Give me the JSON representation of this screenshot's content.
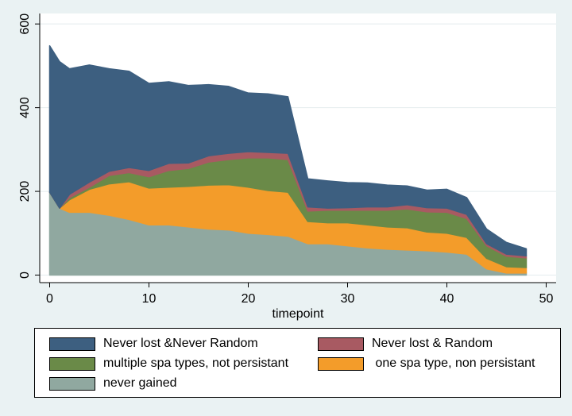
{
  "chart_data": {
    "type": "area",
    "stacked": true,
    "xlabel": "timepoint",
    "ylabel": "",
    "xlim": [
      -1,
      51
    ],
    "ylim": [
      -18,
      625
    ],
    "xticks": [
      0,
      10,
      20,
      30,
      40,
      50
    ],
    "yticks": [
      0,
      200,
      400,
      600
    ],
    "grid": true,
    "legend_position": "bottom",
    "x": [
      0,
      1,
      2,
      4,
      6,
      8,
      10,
      12,
      14,
      16,
      18,
      20,
      22,
      24,
      26,
      28,
      30,
      32,
      34,
      36,
      38,
      40,
      42,
      44,
      46,
      48
    ],
    "series": [
      {
        "name": "never gained",
        "color": "#90a8a0",
        "values": [
          198,
          160,
          150,
          150,
          143,
          133,
          120,
          120,
          115,
          110,
          108,
          100,
          97,
          93,
          75,
          75,
          70,
          65,
          62,
          60,
          58,
          55,
          50,
          15,
          5,
          5
        ]
      },
      {
        "name": " one spa type, non persistant",
        "color": "#f39c2a",
        "values": [
          0,
          0,
          30,
          55,
          75,
          90,
          88,
          90,
          97,
          105,
          108,
          110,
          105,
          105,
          53,
          50,
          55,
          55,
          53,
          53,
          45,
          45,
          40,
          25,
          15,
          13
        ]
      },
      {
        "name": "multiple spa types, not persistant",
        "color": "#6a8a48",
        "values": [
          0,
          0,
          5,
          5,
          20,
          22,
          27,
          40,
          43,
          55,
          60,
          70,
          78,
          78,
          25,
          30,
          30,
          35,
          40,
          45,
          48,
          50,
          45,
          30,
          25,
          23
        ]
      },
      {
        "name": "Never lost & Random",
        "color": "#a85a62",
        "values": [
          0,
          0,
          8,
          12,
          10,
          12,
          15,
          17,
          13,
          15,
          15,
          15,
          13,
          15,
          10,
          5,
          6,
          8,
          8,
          10,
          10,
          10,
          10,
          5,
          5,
          5
        ]
      },
      {
        "name": "Never lost &Never Random",
        "color": "#3d5f80",
        "values": [
          350,
          350,
          300,
          280,
          245,
          230,
          208,
          195,
          185,
          170,
          160,
          140,
          140,
          135,
          67,
          65,
          60,
          57,
          52,
          45,
          42,
          45,
          40,
          35,
          28,
          17
        ]
      }
    ]
  },
  "legend": {
    "items": [
      {
        "label": "Never lost &Never Random",
        "color": "#3d5f80"
      },
      {
        "label": "Never lost & Random",
        "color": "#a85a62"
      },
      {
        "label": "multiple spa types, not persistant",
        "color": "#6a8a48"
      },
      {
        "label": " one spa type, non persistant",
        "color": "#f39c2a"
      },
      {
        "label": "never gained",
        "color": "#90a8a0"
      }
    ]
  }
}
